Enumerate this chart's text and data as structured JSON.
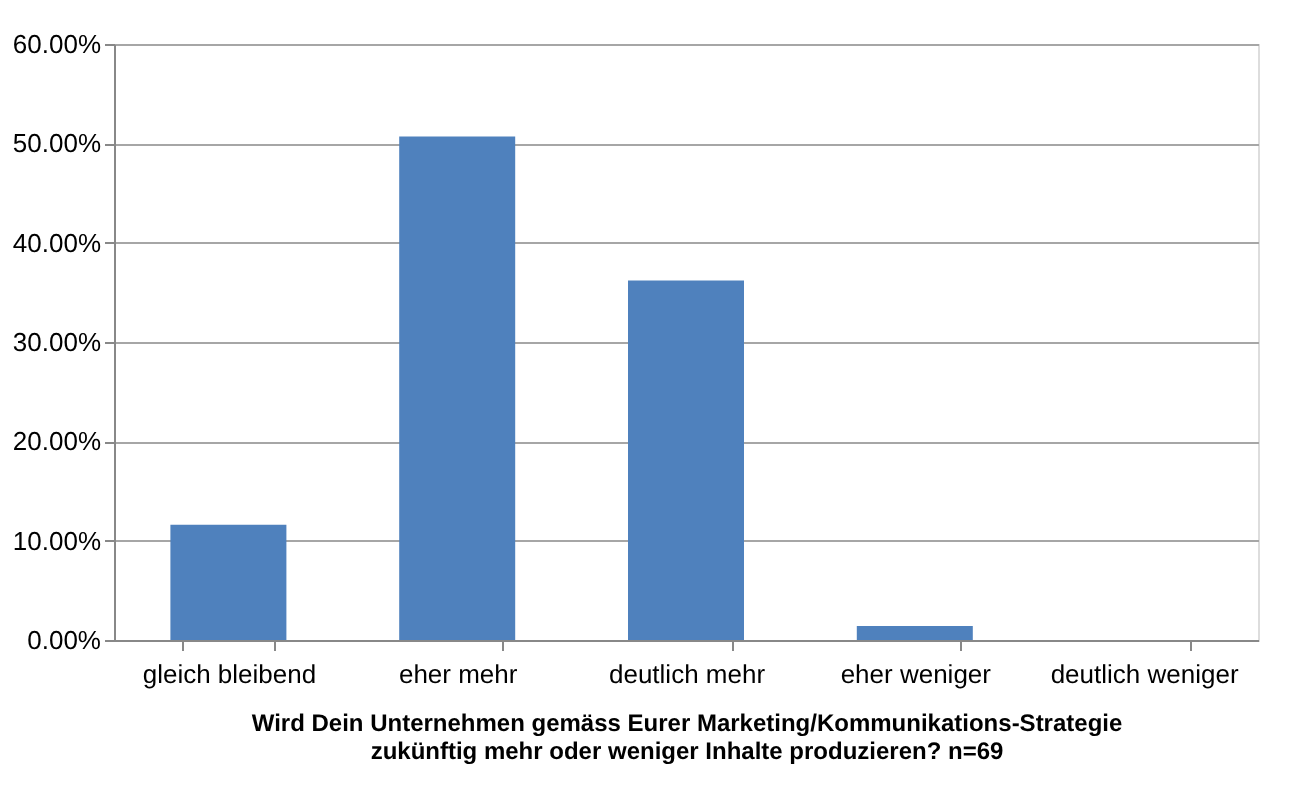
{
  "chart_data": {
    "type": "bar",
    "categories": [
      "gleich bleibend",
      "eher mehr",
      "deutlich mehr",
      "eher weniger",
      "deutlich weniger"
    ],
    "values": [
      11.6,
      50.7,
      36.2,
      1.4,
      0
    ],
    "color": "#4f81bd",
    "xlabel": "Wird Dein Unternehmen gemäss Eurer Marketing/Kommunikations-Strategie\nzukünftig mehr oder weniger Inhalte produzieren? n=69",
    "ylim": [
      0,
      60
    ],
    "yticks": [
      {
        "value": 0,
        "label": "0.00%"
      },
      {
        "value": 10,
        "label": "10.00%"
      },
      {
        "value": 20,
        "label": "20.00%"
      },
      {
        "value": 30,
        "label": "30.00%"
      },
      {
        "value": 40,
        "label": "40.00%"
      },
      {
        "value": 50,
        "label": "50.00%"
      },
      {
        "value": 60,
        "label": "60.00%"
      }
    ],
    "grid": "y"
  }
}
